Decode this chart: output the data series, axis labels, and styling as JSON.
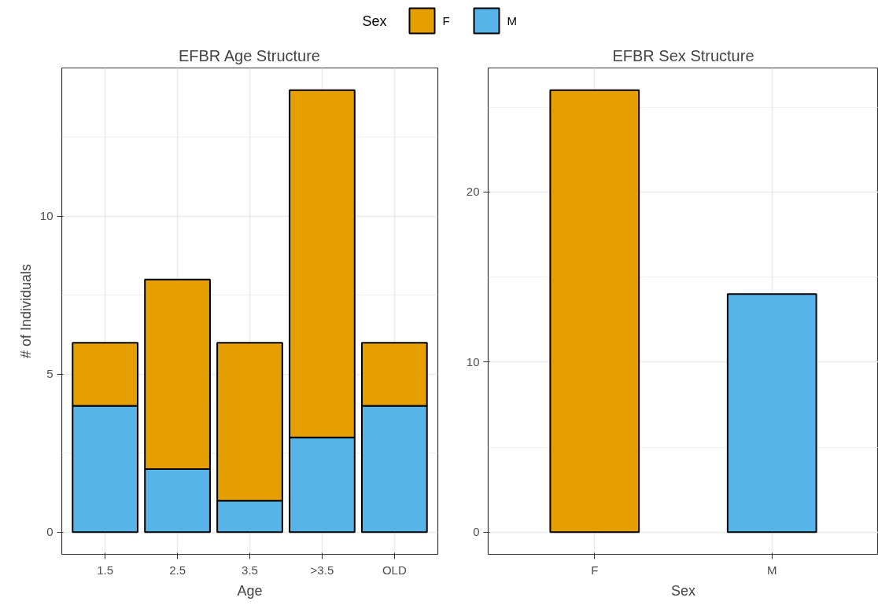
{
  "chart_data": [
    {
      "type": "bar",
      "title": "EFBR Age Structure",
      "xlabel": "Age",
      "ylabel": "# of Individuals",
      "categories": [
        "1.5",
        "2.5",
        "3.5",
        ">3.5",
        "OLD"
      ],
      "stacked": true,
      "legend": "top",
      "legend_title": "Sex",
      "series": [
        {
          "name": "M",
          "color": "#56b4e9",
          "values": [
            4,
            2,
            1,
            3,
            4
          ]
        },
        {
          "name": "F",
          "color": "#e69f00",
          "values": [
            2,
            6,
            5,
            11,
            2
          ]
        }
      ],
      "ylim": [
        -0.7,
        14.7
      ],
      "yticks": [
        0,
        {
          "value": 2.5,
          "label": null
        },
        5,
        {
          "value": 7.5,
          "label": null
        },
        10,
        {
          "value": 12.5,
          "label": null
        }
      ],
      "grid": true
    },
    {
      "type": "bar",
      "title": "EFBR Sex Structure",
      "xlabel": "Sex",
      "categories": [
        "F",
        "M"
      ],
      "values": [
        26,
        14
      ],
      "colors": [
        "#e69f00",
        "#56b4e9"
      ],
      "ylim": [
        -1.3,
        27.3
      ],
      "yticks": [
        0,
        {
          "value": 5,
          "label": null
        },
        10,
        {
          "value": 15,
          "label": null
        },
        20,
        {
          "value": 25,
          "label": null
        }
      ],
      "grid": true
    }
  ]
}
